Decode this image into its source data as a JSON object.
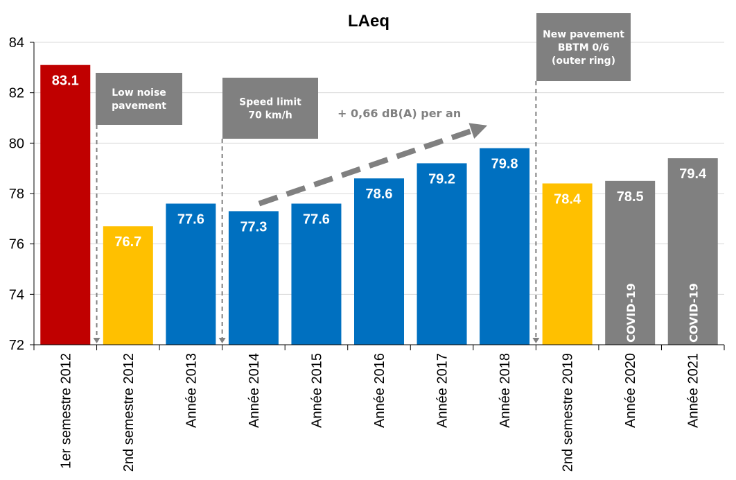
{
  "chart_data": {
    "type": "bar",
    "title": "LAeq",
    "xlabel": "",
    "ylabel": "",
    "ylim": [
      72,
      84
    ],
    "yticks": [
      72,
      74,
      76,
      78,
      80,
      82,
      84
    ],
    "grid": true,
    "categories": [
      "1er semestre 2012",
      "2nd semestre 2012",
      "Année 2013",
      "Année 2014",
      "Année 2015",
      "Année 2016",
      "Année 2017",
      "Année 2018",
      "2nd semestre 2019",
      "Année 2020",
      "Année 2021"
    ],
    "values": [
      83.1,
      76.7,
      77.6,
      77.3,
      77.6,
      78.6,
      79.2,
      79.8,
      78.4,
      78.5,
      79.4
    ],
    "value_labels": [
      "83.1",
      "76.7",
      "77.6",
      "77.3",
      "77.6",
      "78.6",
      "79.2",
      "79.8",
      "78.4",
      "78.5",
      "79.4"
    ],
    "bar_colors": [
      "#c00000",
      "#ffc000",
      "#0070c0",
      "#0070c0",
      "#0070c0",
      "#0070c0",
      "#0070c0",
      "#0070c0",
      "#ffc000",
      "#808080",
      "#808080"
    ],
    "bar_notes": [
      "",
      "",
      "",
      "",
      "",
      "",
      "",
      "",
      "",
      "COVID-19",
      "COVID-19"
    ],
    "annotations": [
      {
        "lines": [
          "Low noise",
          "pavement"
        ],
        "marker_before_category": 1
      },
      {
        "lines": [
          "Speed limit",
          "70 km/h"
        ],
        "marker_before_category": 3
      },
      {
        "lines": [
          "New pavement",
          "BBTM 0/6",
          "(outer ring)"
        ],
        "marker_before_category": 8
      }
    ],
    "trend": {
      "label": "+ 0,66 dB(A) per an",
      "from_category": 3,
      "to_category": 7,
      "from_value": 77.6,
      "to_value": 80.7
    }
  },
  "colors": {
    "annotation_box": "#808080",
    "annotation_text": "#ffffff",
    "trend": "#808080",
    "grid": "#d9d9d9",
    "axis": "#000000"
  }
}
